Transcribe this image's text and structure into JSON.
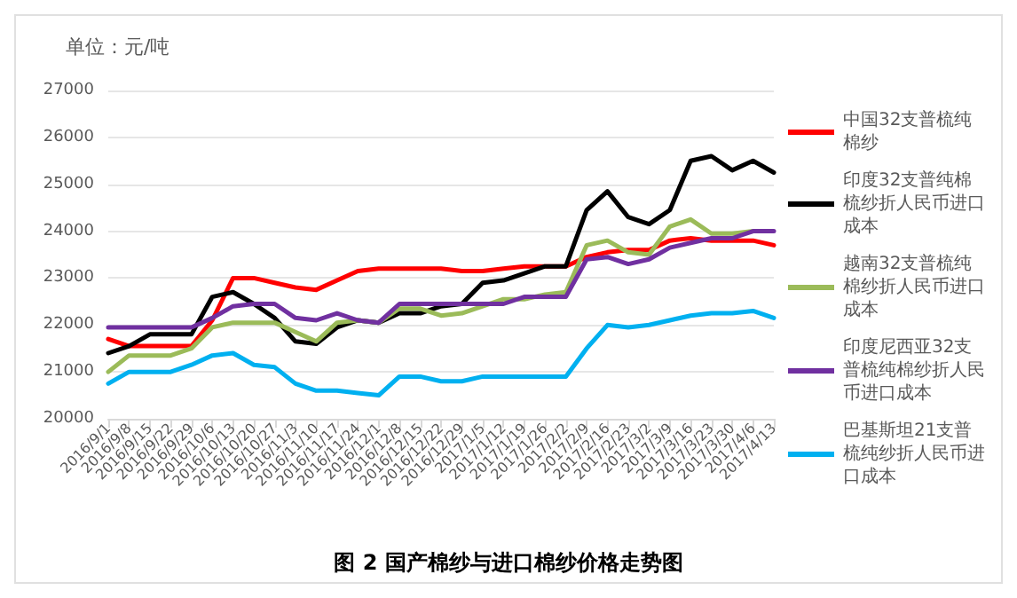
{
  "chart_data": {
    "type": "line",
    "title": "图 2 国产棉纱与进口棉纱价格走势图",
    "ylabel": "单位：元/吨",
    "categories": [
      "2016/9/1",
      "2016/9/8",
      "2016/9/15",
      "2016/9/22",
      "2016/9/29",
      "2016/10/6",
      "2016/10/13",
      "2016/10/20",
      "2016/10/27",
      "2016/11/3",
      "2016/11/10",
      "2016/11/17",
      "2016/11/24",
      "2016/12/1",
      "2016/12/8",
      "2016/12/15",
      "2016/12/22",
      "2016/12/29",
      "2017/1/5",
      "2017/1/12",
      "2017/1/19",
      "2017/1/26",
      "2017/2/2",
      "2017/2/9",
      "2017/2/16",
      "2017/2/23",
      "2017/3/2",
      "2017/3/9",
      "2017/3/16",
      "2017/3/23",
      "2017/3/30",
      "2017/4/6",
      "2017/4/13"
    ],
    "series": [
      {
        "name": "中国32支普梳纯棉纱",
        "color": "#ff0000",
        "values": [
          21700,
          21550,
          21550,
          21550,
          21550,
          22100,
          23000,
          23000,
          22900,
          22800,
          22750,
          22950,
          23150,
          23200,
          23200,
          23200,
          23200,
          23150,
          23150,
          23200,
          23250,
          23250,
          23250,
          23450,
          23550,
          23600,
          23600,
          23800,
          23850,
          23800,
          23800,
          23800,
          23700
        ]
      },
      {
        "name": "印度32支普纯棉梳纱折人民币进口成本",
        "color": "#000000",
        "values": [
          21400,
          21550,
          21800,
          21800,
          21800,
          22600,
          22700,
          22450,
          22150,
          21650,
          21600,
          21950,
          22100,
          22050,
          22250,
          22250,
          22400,
          22450,
          22900,
          22950,
          23100,
          23250,
          23250,
          24450,
          24850,
          24300,
          24150,
          24450,
          25500,
          25600,
          25300,
          25500,
          25250
        ]
      },
      {
        "name": "越南32支普梳纯棉纱折人民币进口成本",
        "color": "#9bbb59",
        "values": [
          21000,
          21350,
          21350,
          21350,
          21500,
          21950,
          22050,
          22050,
          22050,
          21850,
          21650,
          22050,
          22100,
          22050,
          22350,
          22350,
          22200,
          22250,
          22400,
          22550,
          22550,
          22650,
          22700,
          23700,
          23800,
          23550,
          23500,
          24100,
          24250,
          23950,
          23950,
          24000,
          null
        ]
      },
      {
        "name": "印度尼西亚32支普梳纯棉纱折人民币进口成本",
        "color": "#7030a0",
        "values": [
          21950,
          21950,
          21950,
          21950,
          21950,
          22150,
          22400,
          22450,
          22450,
          22150,
          22100,
          22250,
          22100,
          22050,
          22450,
          22450,
          22450,
          22450,
          22450,
          22450,
          22600,
          22600,
          22600,
          23400,
          23450,
          23300,
          23400,
          23650,
          23750,
          23850,
          23850,
          24000,
          24000
        ]
      },
      {
        "name": "巴基斯坦21支普梳纯纱折人民币进口成本",
        "color": "#00b0f0",
        "values": [
          20750,
          21000,
          21000,
          21000,
          21150,
          21350,
          21400,
          21150,
          21100,
          20750,
          20600,
          20600,
          20550,
          20500,
          20900,
          20900,
          20800,
          20800,
          20900,
          20900,
          20900,
          20900,
          20900,
          21500,
          22000,
          21950,
          22000,
          22100,
          22200,
          22250,
          22250,
          22300,
          22150
        ]
      }
    ],
    "ylim": [
      20000,
      27000
    ],
    "yticks": [
      20000,
      21000,
      22000,
      23000,
      24000,
      25000,
      26000,
      27000
    ],
    "grid": "y",
    "legend": "right",
    "marker": "none",
    "line_style": "solid"
  }
}
